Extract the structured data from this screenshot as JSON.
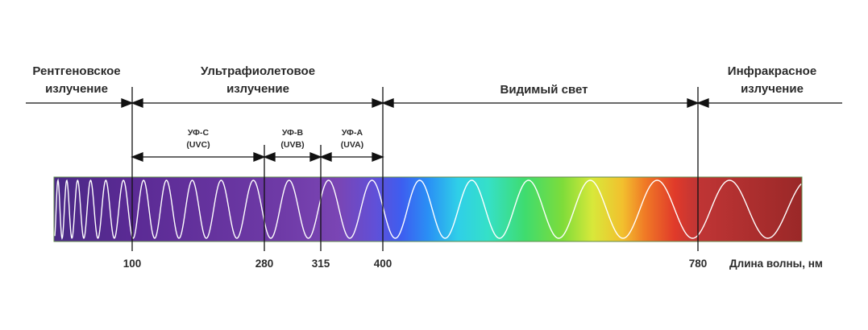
{
  "regions": {
    "xray": {
      "line1": "Рентгеновское",
      "line2": "излучение"
    },
    "uv": {
      "line1": "Ультрафиолетовое",
      "line2": "излучение"
    },
    "visible": {
      "label": "Видимый свет"
    },
    "ir": {
      "line1": "Инфракрасное",
      "line2": "излучение"
    }
  },
  "subregions": {
    "uvc": {
      "line1": "УФ-С",
      "line2": "(UVC)"
    },
    "uvb": {
      "line1": "УФ-В",
      "line2": "(UVB)"
    },
    "uva": {
      "line1": "УФ-А",
      "line2": "(UVA)"
    }
  },
  "ticks": [
    "100",
    "280",
    "315",
    "400",
    "780"
  ],
  "axis_label": "Длина волны, нм",
  "colors": {
    "text": "#2b2b2b",
    "line": "#111111",
    "uv_band": "#5a2a9a",
    "ir_band": "#a02828",
    "wave": "#ffffff"
  }
}
